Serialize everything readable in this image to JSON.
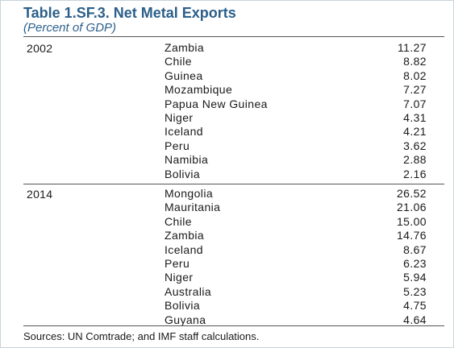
{
  "title": "Table 1.SF.3. Net Metal Exports",
  "subtitle": "(Percent of GDP)",
  "sections": [
    {
      "year": "2002",
      "rows": [
        {
          "country": "Zambia",
          "value": "11.27"
        },
        {
          "country": "Chile",
          "value": "8.82"
        },
        {
          "country": "Guinea",
          "value": "8.02"
        },
        {
          "country": "Mozambique",
          "value": "7.27"
        },
        {
          "country": "Papua New Guinea",
          "value": "7.07"
        },
        {
          "country": "Niger",
          "value": "4.31"
        },
        {
          "country": "Iceland",
          "value": "4.21"
        },
        {
          "country": "Peru",
          "value": "3.62"
        },
        {
          "country": "Namibia",
          "value": "2.88"
        },
        {
          "country": "Bolivia",
          "value": "2.16"
        }
      ]
    },
    {
      "year": "2014",
      "rows": [
        {
          "country": "Mongolia",
          "value": "26.52"
        },
        {
          "country": "Mauritania",
          "value": "21.06"
        },
        {
          "country": "Chile",
          "value": "15.00"
        },
        {
          "country": "Zambia",
          "value": "14.76"
        },
        {
          "country": "Iceland",
          "value": "8.67"
        },
        {
          "country": "Peru",
          "value": "6.23"
        },
        {
          "country": "Niger",
          "value": "5.94"
        },
        {
          "country": "Australia",
          "value": "5.23"
        },
        {
          "country": "Bolivia",
          "value": "4.75"
        },
        {
          "country": "Guyana",
          "value": "4.64"
        }
      ]
    }
  ],
  "source": "Sources: UN Comtrade; and IMF staff calculations.",
  "colors": {
    "title": "#2b5f8a",
    "text": "#1a1a1a",
    "rule": "#555555",
    "frame": "#c9d3dc"
  }
}
